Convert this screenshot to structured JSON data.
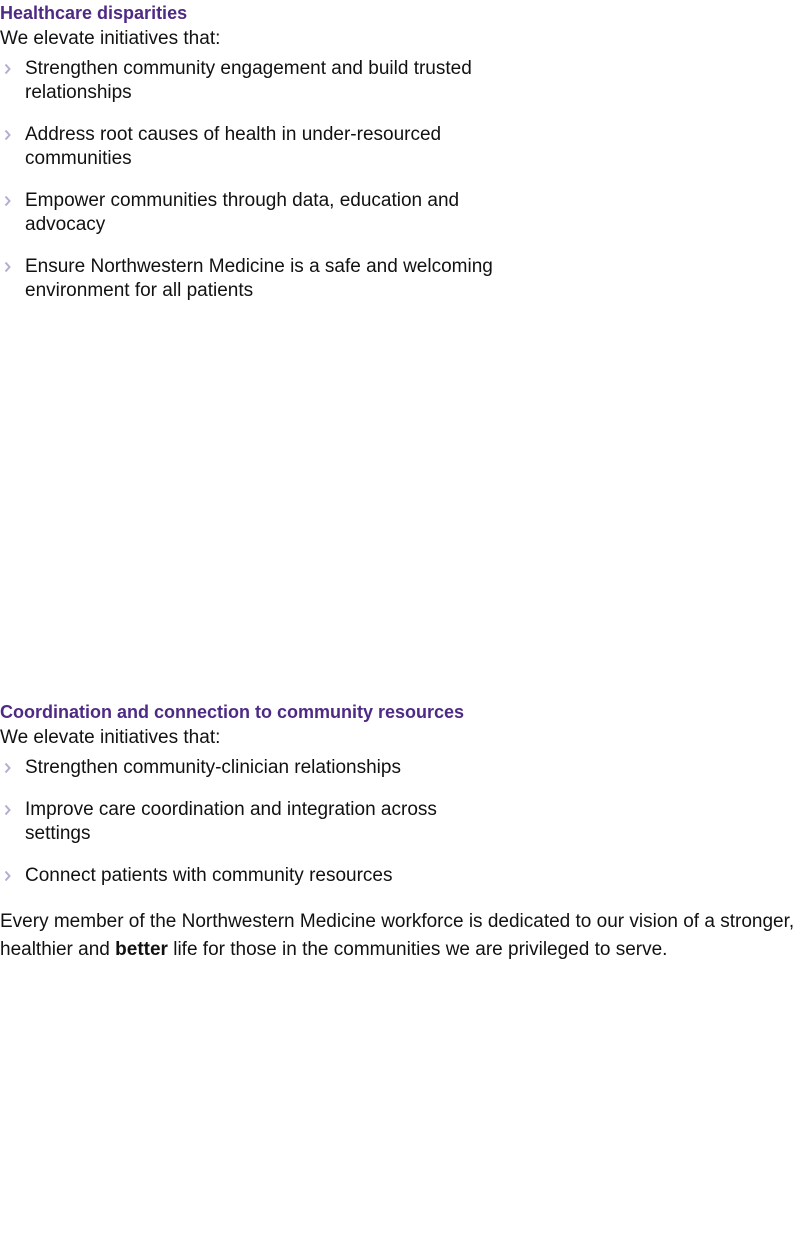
{
  "sections": [
    {
      "title": "Healthcare disparities",
      "intro": "We elevate initiatives that:",
      "items": [
        "Strengthen community engagement and build trusted relationships",
        "Address root causes of health in under-resourced communities",
        "Empower communities through data, education and advocacy",
        "Ensure Northwestern Medicine is a safe and welcoming environment for all patients"
      ]
    },
    {
      "title": "Coordination and connection to community resources",
      "intro": "We elevate initiatives that:",
      "items": [
        "Strengthen community-clinician relationships",
        "Improve care coordination and integration across settings",
        "Connect patients with community resources"
      ]
    }
  ],
  "closing": {
    "before": "Every member of the Northwestern Medicine workforce is dedicated to our vision of a stronger, healthier and ",
    "bold": "better",
    "after": " life for those in the communities we are privileged to serve."
  }
}
